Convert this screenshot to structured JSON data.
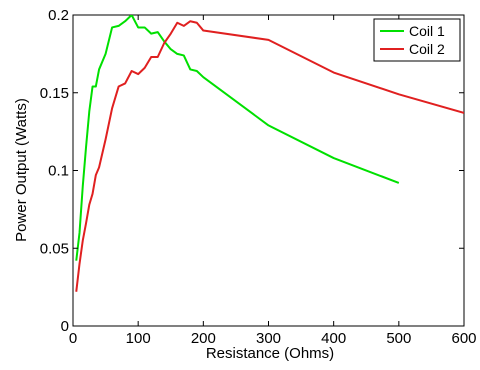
{
  "chart_data": {
    "type": "line",
    "xlabel": "Resistance (Ohms)",
    "ylabel": "Power Output (Watts)",
    "xlim": [
      0,
      600
    ],
    "ylim": [
      0,
      0.2
    ],
    "x_ticks": [
      0,
      100,
      200,
      300,
      400,
      500,
      600
    ],
    "y_ticks": [
      0,
      0.05,
      0.1,
      0.15,
      0.2
    ],
    "y_tick_labels": [
      "0",
      "0.05",
      "0.1",
      "0.15",
      "0.2"
    ],
    "grid": false,
    "legend": "top-right",
    "series": [
      {
        "name": "Coil 1",
        "color": "#00e000",
        "points": [
          [
            5,
            0.042
          ],
          [
            10,
            0.06
          ],
          [
            15,
            0.09
          ],
          [
            20,
            0.115
          ],
          [
            25,
            0.138
          ],
          [
            30,
            0.154
          ],
          [
            35,
            0.154
          ],
          [
            40,
            0.165
          ],
          [
            50,
            0.175
          ],
          [
            60,
            0.192
          ],
          [
            70,
            0.193
          ],
          [
            80,
            0.196
          ],
          [
            90,
            0.2
          ],
          [
            100,
            0.192
          ],
          [
            110,
            0.192
          ],
          [
            120,
            0.188
          ],
          [
            130,
            0.189
          ],
          [
            140,
            0.183
          ],
          [
            150,
            0.178
          ],
          [
            160,
            0.175
          ],
          [
            170,
            0.174
          ],
          [
            180,
            0.165
          ],
          [
            190,
            0.164
          ],
          [
            200,
            0.16
          ],
          [
            300,
            0.129
          ],
          [
            400,
            0.108
          ],
          [
            500,
            0.092
          ]
        ]
      },
      {
        "name": "Coil 2",
        "color": "#e02020",
        "points": [
          [
            5,
            0.022
          ],
          [
            10,
            0.04
          ],
          [
            15,
            0.055
          ],
          [
            20,
            0.066
          ],
          [
            25,
            0.078
          ],
          [
            30,
            0.085
          ],
          [
            35,
            0.097
          ],
          [
            40,
            0.102
          ],
          [
            50,
            0.12
          ],
          [
            60,
            0.14
          ],
          [
            70,
            0.154
          ],
          [
            80,
            0.156
          ],
          [
            90,
            0.164
          ],
          [
            100,
            0.162
          ],
          [
            110,
            0.166
          ],
          [
            120,
            0.173
          ],
          [
            130,
            0.173
          ],
          [
            140,
            0.182
          ],
          [
            150,
            0.188
          ],
          [
            160,
            0.195
          ],
          [
            170,
            0.193
          ],
          [
            180,
            0.196
          ],
          [
            190,
            0.195
          ],
          [
            200,
            0.19
          ],
          [
            300,
            0.184
          ],
          [
            400,
            0.163
          ],
          [
            500,
            0.149
          ],
          [
            600,
            0.137
          ]
        ]
      }
    ]
  }
}
